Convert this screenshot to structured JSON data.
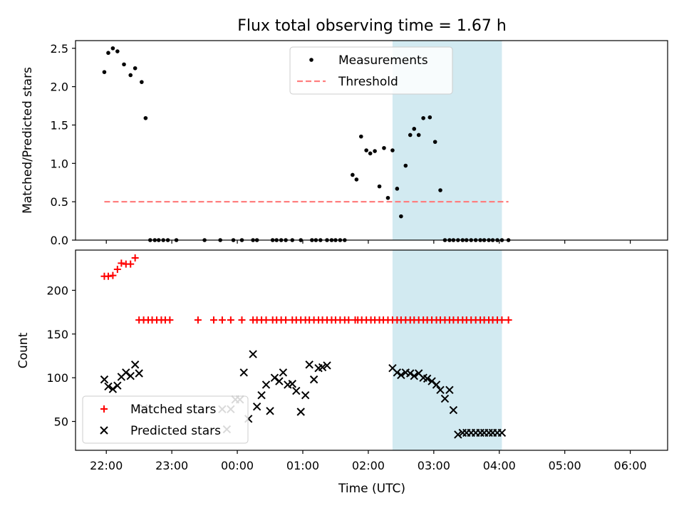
{
  "chart_data": [
    {
      "type": "scatter",
      "title": "Flux total observing time = 1.67 h",
      "ylabel": "Matched/Predicted stars",
      "xlabel": "",
      "x_unit": "hours since 22:00 UTC",
      "xlim": [
        -0.47,
        8.57
      ],
      "ylim": [
        0.0,
        2.6
      ],
      "yticks": [
        "0.0",
        "0.5",
        "1.0",
        "1.5",
        "2.0",
        "2.5"
      ],
      "shaded_region": [
        4.37,
        6.04
      ],
      "shade_color": "#add8e6",
      "legend_position": "upper center",
      "series": [
        {
          "name": "Measurements",
          "color": "#000000",
          "marker": "dot",
          "x": [
            -0.03,
            0.03,
            0.1,
            0.17,
            0.27,
            0.37,
            0.44,
            0.54,
            0.6,
            0.67,
            0.74,
            0.8,
            0.87,
            0.94,
            1.07,
            1.5,
            1.74,
            1.94,
            2.07,
            2.24,
            2.3,
            2.54,
            2.6,
            2.67,
            2.74,
            2.84,
            2.97,
            3.14,
            3.2,
            3.27,
            3.37,
            3.44,
            3.5,
            3.57,
            3.64,
            3.76,
            3.82,
            3.89,
            3.97,
            4.03,
            4.1,
            4.17,
            4.24,
            4.3,
            4.37,
            4.44,
            4.5,
            4.57,
            4.64,
            4.7,
            4.77,
            4.84,
            4.94,
            5.02,
            5.1,
            5.17,
            5.24,
            5.3,
            5.37,
            5.44,
            5.5,
            5.57,
            5.64,
            5.71,
            5.77,
            5.84,
            5.9,
            5.97,
            6.04,
            6.14
          ],
          "y": [
            2.19,
            2.44,
            2.5,
            2.46,
            2.29,
            2.15,
            2.24,
            2.06,
            1.59,
            0.0,
            0.0,
            0.0,
            0.0,
            0.0,
            0.0,
            0.0,
            0.0,
            0.0,
            0.0,
            0.0,
            0.0,
            0.0,
            0.0,
            0.0,
            0.0,
            0.0,
            0.0,
            0.0,
            0.0,
            0.0,
            0.0,
            0.0,
            0.0,
            0.0,
            0.0,
            0.85,
            0.79,
            1.35,
            1.17,
            1.13,
            1.16,
            0.7,
            1.2,
            0.55,
            1.17,
            0.67,
            0.31,
            0.97,
            1.37,
            1.45,
            1.37,
            1.59,
            1.6,
            1.28,
            0.65,
            0.0,
            0.0,
            0.0,
            0.0,
            0.0,
            0.0,
            0.0,
            0.0,
            0.0,
            0.0,
            0.0,
            0.0,
            0.0,
            0.0,
            0.0
          ]
        },
        {
          "name": "Threshold",
          "color": "#ff7f7f",
          "style": "dashed",
          "x": [
            -0.03,
            6.14
          ],
          "y": [
            0.5,
            0.5
          ]
        }
      ]
    },
    {
      "type": "scatter",
      "title": "",
      "ylabel": "Count",
      "xlabel": "Time (UTC)",
      "x_unit": "hours since 22:00 UTC",
      "xlim": [
        -0.47,
        8.57
      ],
      "ylim": [
        17,
        246
      ],
      "yticks": [
        "50",
        "100",
        "150",
        "200"
      ],
      "xticks": [
        "22:00",
        "23:00",
        "00:00",
        "01:00",
        "02:00",
        "03:00",
        "04:00",
        "05:00",
        "06:00"
      ],
      "shaded_region": [
        4.37,
        6.04
      ],
      "shade_color": "#add8e6",
      "legend_position": "lower left",
      "series": [
        {
          "name": "Matched stars",
          "color": "#ff0000",
          "marker": "plus",
          "x": [
            -0.03,
            0.03,
            0.1,
            0.17,
            0.23,
            0.3,
            0.37,
            0.44,
            0.5,
            0.57,
            0.64,
            0.7,
            0.77,
            0.84,
            0.9,
            0.97,
            1.4,
            1.64,
            1.77,
            1.9,
            2.07,
            2.24,
            2.3,
            2.37,
            2.44,
            2.54,
            2.6,
            2.67,
            2.74,
            2.84,
            2.9,
            2.97,
            3.04,
            3.1,
            3.17,
            3.24,
            3.3,
            3.37,
            3.44,
            3.5,
            3.57,
            3.64,
            3.7,
            3.8,
            3.84,
            3.9,
            3.97,
            4.04,
            4.1,
            4.17,
            4.23,
            4.3,
            4.37,
            4.44,
            4.5,
            4.57,
            4.64,
            4.7,
            4.77,
            4.84,
            4.9,
            4.97,
            5.04,
            5.1,
            5.17,
            5.24,
            5.3,
            5.37,
            5.44,
            5.5,
            5.57,
            5.64,
            5.71,
            5.77,
            5.84,
            5.9,
            5.97,
            6.04,
            6.14
          ],
          "y": [
            216,
            216,
            217,
            224,
            231,
            230,
            230,
            237,
            166,
            166,
            166,
            166,
            166,
            166,
            166,
            166,
            166,
            166,
            166,
            166,
            166,
            166,
            166,
            166,
            166,
            166,
            166,
            166,
            166,
            166,
            166,
            166,
            166,
            166,
            166,
            166,
            166,
            166,
            166,
            166,
            166,
            166,
            166,
            166,
            166,
            166,
            166,
            166,
            166,
            166,
            166,
            166,
            166,
            166,
            166,
            166,
            166,
            166,
            166,
            166,
            166,
            166,
            166,
            166,
            166,
            166,
            166,
            166,
            166,
            166,
            166,
            166,
            166,
            166,
            166,
            166,
            166,
            166,
            166
          ]
        },
        {
          "name": "Predicted stars",
          "color": "#000000",
          "marker": "x",
          "x": [
            -0.03,
            0.03,
            0.1,
            0.17,
            0.23,
            0.3,
            0.37,
            0.44,
            0.5,
            0.57,
            1.77,
            1.84,
            1.9,
            1.97,
            2.04,
            2.1,
            2.17,
            2.24,
            2.3,
            2.37,
            2.44,
            2.5,
            2.57,
            2.64,
            2.7,
            2.77,
            2.84,
            2.9,
            2.97,
            3.04,
            3.1,
            3.17,
            3.24,
            3.3,
            3.37,
            4.37,
            4.44,
            4.5,
            4.57,
            4.64,
            4.7,
            4.77,
            4.84,
            4.9,
            4.97,
            5.04,
            5.1,
            5.17,
            5.24,
            5.3,
            5.37,
            5.44,
            5.5,
            5.57,
            5.64,
            5.71,
            5.77,
            5.84,
            5.9,
            5.97,
            6.04
          ],
          "y": [
            98,
            90,
            87,
            91,
            101,
            106,
            102,
            115,
            105,
            65,
            64,
            41,
            64,
            75,
            75,
            106,
            53,
            127,
            67,
            80,
            92,
            62,
            100,
            96,
            106,
            92,
            93,
            85,
            61,
            80,
            115,
            98,
            111,
            112,
            114,
            111,
            106,
            103,
            106,
            105,
            102,
            105,
            100,
            99,
            96,
            92,
            86,
            76,
            86,
            63,
            35,
            37,
            37,
            37,
            37,
            37,
            37,
            37,
            37,
            37,
            37
          ]
        }
      ]
    }
  ]
}
